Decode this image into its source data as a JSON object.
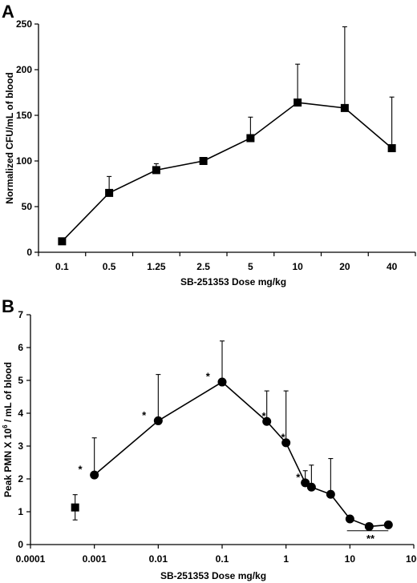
{
  "chart_data": [
    {
      "panel": "A",
      "type": "line",
      "xscale": "categorical",
      "categories": [
        "0.1",
        "0.5",
        "1.25",
        "2.5",
        "5",
        "10",
        "20",
        "40"
      ],
      "xlabel": "SB-251353 Dose mg/kg",
      "ylabel": "Normalized CFU/mL of blood",
      "ylim": [
        0,
        250
      ],
      "yticks": [
        0,
        50,
        100,
        150,
        200,
        250
      ],
      "series": [
        {
          "marker": "square",
          "values": [
            12,
            65,
            90,
            100,
            125,
            164,
            158,
            114
          ],
          "error_upper": [
            null,
            83,
            97,
            null,
            148,
            206,
            247,
            170
          ]
        }
      ]
    },
    {
      "panel": "B",
      "type": "line",
      "xscale": "log",
      "xlabel": "SB-251353 Dose mg/kg",
      "ylabel_parts": [
        "Peak PMN X 10",
        "6",
        " / mL of blood"
      ],
      "xlim": [
        0.0001,
        100
      ],
      "xticks": [
        {
          "value": 0.0001,
          "label": "0.0001"
        },
        {
          "value": 0.001,
          "label": "0.001"
        },
        {
          "value": 0.01,
          "label": "0.01"
        },
        {
          "value": 0.1,
          "label": "0.1"
        },
        {
          "value": 1,
          "label": "1"
        },
        {
          "value": 10,
          "label": "10"
        },
        {
          "value": 100,
          "label": "100"
        }
      ],
      "ylim": [
        0,
        7
      ],
      "yticks": [
        0,
        1,
        2,
        3,
        4,
        5,
        6,
        7
      ],
      "control": {
        "marker": "square",
        "x": 0.0005,
        "y": 1.13,
        "error_upper": 1.52,
        "error_lower": 0.75
      },
      "series": [
        {
          "marker": "circle",
          "x": [
            0.001,
            0.01,
            0.1,
            0.5,
            1,
            2,
            2.5,
            5,
            10,
            20,
            40
          ],
          "y": [
            2.12,
            3.77,
            4.95,
            3.75,
            3.1,
            1.88,
            1.75,
            1.53,
            0.78,
            0.55,
            0.6
          ],
          "error_upper": [
            3.25,
            5.18,
            6.2,
            4.68,
            4.68,
            2.25,
            2.42,
            2.62,
            null,
            null,
            null
          ]
        }
      ],
      "annotations": [
        {
          "text": "*",
          "x": 0.0006,
          "y": 2.3
        },
        {
          "text": "*",
          "x": 0.006,
          "y": 3.95
        },
        {
          "text": "*",
          "x": 0.06,
          "y": 5.13
        },
        {
          "text": "*",
          "x": 0.45,
          "y": 3.93
        },
        {
          "text": "*",
          "x": 0.9,
          "y": 3.28
        },
        {
          "text": "*",
          "x": 1.55,
          "y": 2.06
        },
        {
          "text": "**",
          "x": 21,
          "y": 0.2
        }
      ],
      "bracket": {
        "x_from": 9,
        "x_to": 40,
        "y": 0.42
      }
    }
  ],
  "labels": {
    "panel_a": "A",
    "panel_b": "B"
  }
}
